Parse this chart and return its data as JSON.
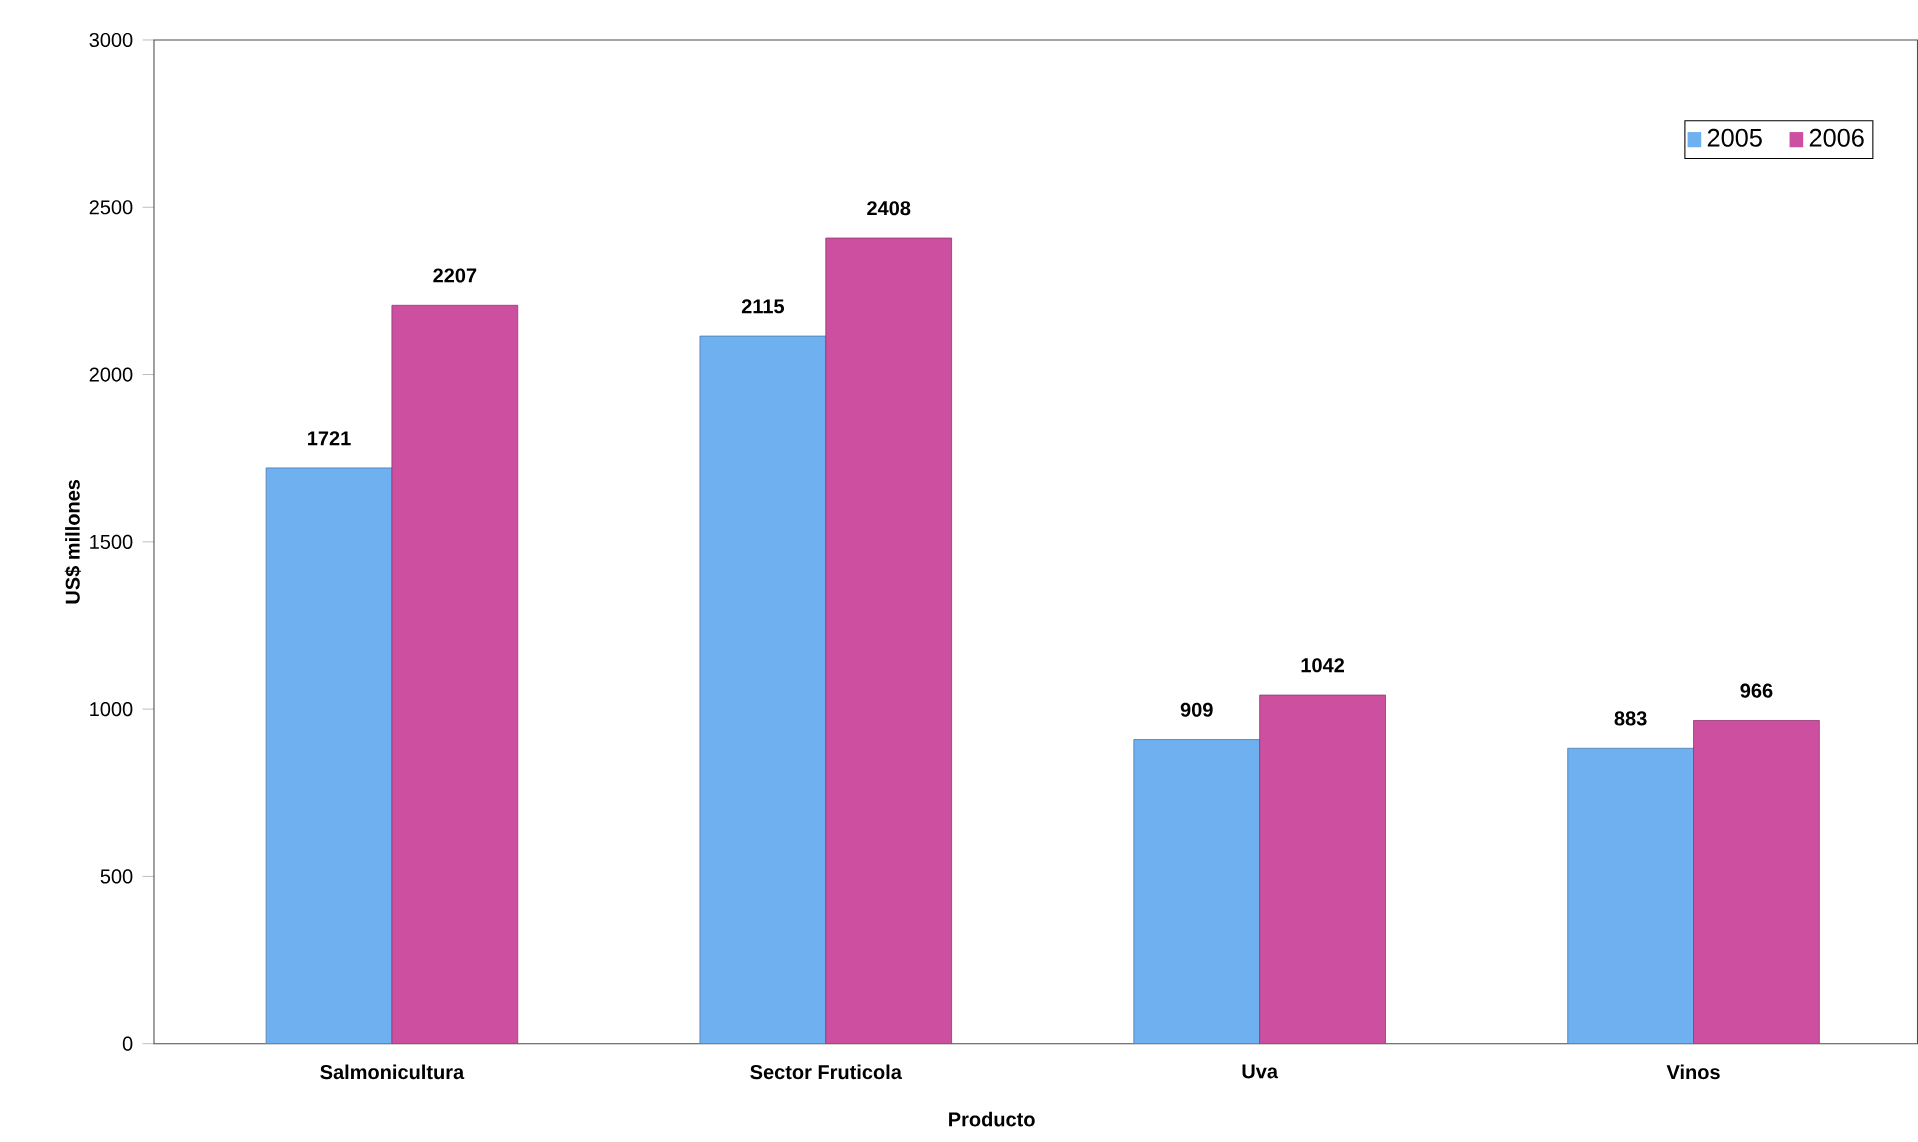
{
  "chart_data": {
    "type": "bar",
    "xlabel": "Producto",
    "ylabel": "US$ millones",
    "categories": [
      "Salmonicultura",
      "Sector Fruticola",
      "Uva",
      "Vinos"
    ],
    "series": [
      {
        "name": "2005",
        "color": "#6fb0f0",
        "values": [
          1721,
          2115,
          909,
          883
        ]
      },
      {
        "name": "2006",
        "color": "#cc4fa0",
        "values": [
          2207,
          2408,
          1042,
          966
        ]
      }
    ],
    "ylim": [
      0,
      3000
    ],
    "yticks": [
      0,
      500,
      1000,
      1500,
      2000,
      2500,
      3000
    ],
    "data_labels": true,
    "legend": "top right",
    "grid": false
  }
}
